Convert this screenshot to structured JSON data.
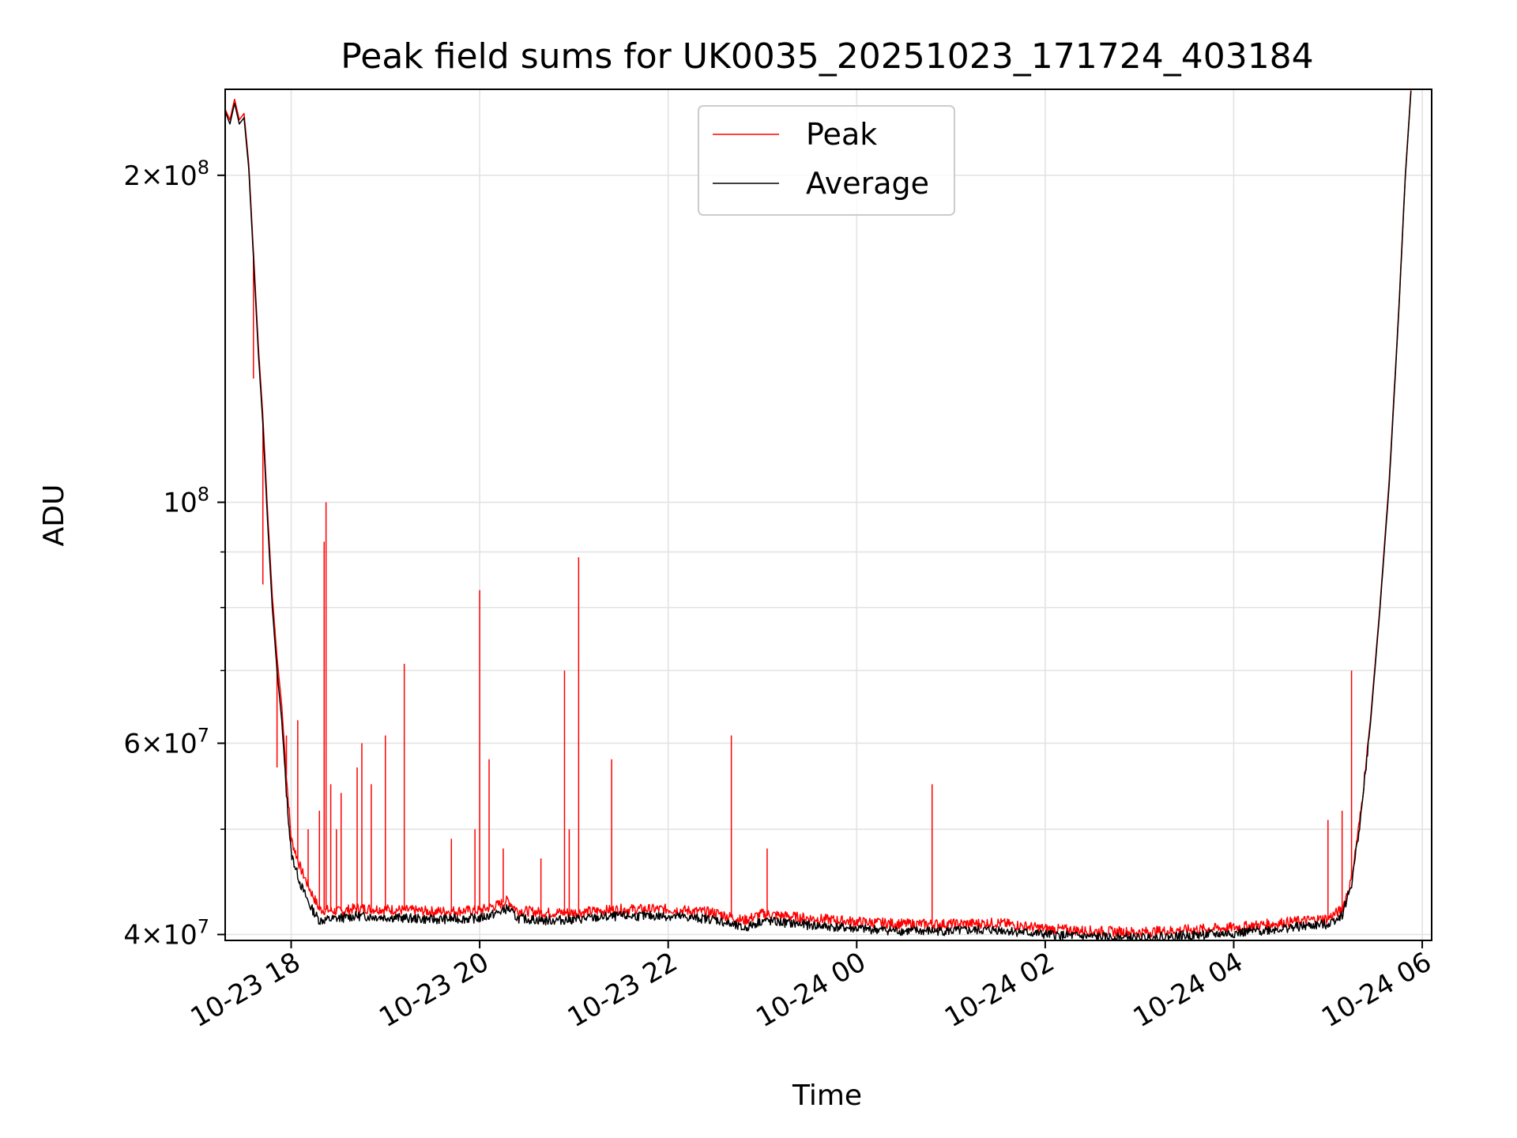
{
  "chart_data": {
    "type": "line",
    "title": "Peak field sums for UK0035_20251023_171724_403184",
    "xlabel": "Time",
    "ylabel": "ADU",
    "yscale": "log",
    "ylim": [
      39500000,
      240000000
    ],
    "xlim_hours": [
      17.3,
      30.1
    ],
    "grid": true,
    "legend_position": "top-center",
    "x_ticks": [
      {
        "hour": 18,
        "label": "10-23 18"
      },
      {
        "hour": 20,
        "label": "10-23 20"
      },
      {
        "hour": 22,
        "label": "10-23 22"
      },
      {
        "hour": 24,
        "label": "10-24 00"
      },
      {
        "hour": 26,
        "label": "10-24 02"
      },
      {
        "hour": 28,
        "label": "10-24 04"
      },
      {
        "hour": 30,
        "label": "10-24 06"
      }
    ],
    "y_ticks": [
      {
        "value": 40000000,
        "base": "4",
        "exp": "7",
        "mult": true
      },
      {
        "value": 60000000,
        "base": "6",
        "exp": "7",
        "mult": true
      },
      {
        "value": 100000000,
        "base": "10",
        "exp": "8",
        "mult": false
      },
      {
        "value": 200000000,
        "base": "2",
        "exp": "8",
        "mult": true
      }
    ],
    "y_minor_ticks": [
      50000000,
      70000000,
      80000000,
      90000000
    ],
    "series": [
      {
        "name": "Peak",
        "color": "#ff0000",
        "baseline_points": [
          [
            17.3,
            230000000
          ],
          [
            17.35,
            225000000
          ],
          [
            17.4,
            235000000
          ],
          [
            17.45,
            225000000
          ],
          [
            17.5,
            228000000
          ],
          [
            17.55,
            205000000
          ],
          [
            17.6,
            170000000
          ],
          [
            17.65,
            140000000
          ],
          [
            17.7,
            120000000
          ],
          [
            17.75,
            98000000
          ],
          [
            17.8,
            82000000
          ],
          [
            17.85,
            72000000
          ],
          [
            17.9,
            65000000
          ],
          [
            17.95,
            56000000
          ],
          [
            18.0,
            49000000
          ],
          [
            18.1,
            46000000
          ],
          [
            18.2,
            44000000
          ],
          [
            18.3,
            42200000
          ],
          [
            18.5,
            42000000
          ],
          [
            18.7,
            42300000
          ],
          [
            19.0,
            42200000
          ],
          [
            19.5,
            42000000
          ],
          [
            20.0,
            42100000
          ],
          [
            20.2,
            42600000
          ],
          [
            20.3,
            43000000
          ],
          [
            20.4,
            42100000
          ],
          [
            20.7,
            41900000
          ],
          [
            21.0,
            41900000
          ],
          [
            21.5,
            42200000
          ],
          [
            22.0,
            42200000
          ],
          [
            22.5,
            41900000
          ],
          [
            22.8,
            41200000
          ],
          [
            23.0,
            41800000
          ],
          [
            23.5,
            41400000
          ],
          [
            24.0,
            41100000
          ],
          [
            24.5,
            40900000
          ],
          [
            25.0,
            40900000
          ],
          [
            25.5,
            41000000
          ],
          [
            26.0,
            40500000
          ],
          [
            26.5,
            40300000
          ],
          [
            27.0,
            40200000
          ],
          [
            27.5,
            40400000
          ],
          [
            28.0,
            40600000
          ],
          [
            28.5,
            41000000
          ],
          [
            29.0,
            41400000
          ],
          [
            29.15,
            42200000
          ],
          [
            29.25,
            45000000
          ],
          [
            29.35,
            52000000
          ],
          [
            29.45,
            63000000
          ],
          [
            29.55,
            80000000
          ],
          [
            29.65,
            105000000
          ],
          [
            29.75,
            150000000
          ],
          [
            29.82,
            200000000
          ],
          [
            29.88,
            240000000
          ]
        ],
        "spikes": [
          [
            17.6,
            130000000
          ],
          [
            17.7,
            84000000
          ],
          [
            17.85,
            57000000
          ],
          [
            17.95,
            61000000
          ],
          [
            18.07,
            63000000
          ],
          [
            18.18,
            50000000
          ],
          [
            18.3,
            52000000
          ],
          [
            18.35,
            92000000
          ],
          [
            18.37,
            100000000
          ],
          [
            18.42,
            55000000
          ],
          [
            18.48,
            50000000
          ],
          [
            18.53,
            54000000
          ],
          [
            18.7,
            57000000
          ],
          [
            18.75,
            60000000
          ],
          [
            18.85,
            55000000
          ],
          [
            19.0,
            61000000
          ],
          [
            19.2,
            71000000
          ],
          [
            19.7,
            49000000
          ],
          [
            19.95,
            50000000
          ],
          [
            20.0,
            83000000
          ],
          [
            20.1,
            58000000
          ],
          [
            20.25,
            48000000
          ],
          [
            20.65,
            47000000
          ],
          [
            20.9,
            70000000
          ],
          [
            20.95,
            50000000
          ],
          [
            21.05,
            89000000
          ],
          [
            21.4,
            58000000
          ],
          [
            22.67,
            61000000
          ],
          [
            23.05,
            48000000
          ],
          [
            24.8,
            55000000
          ],
          [
            29.0,
            51000000
          ],
          [
            29.15,
            52000000
          ],
          [
            29.25,
            70000000
          ]
        ]
      },
      {
        "name": "Average",
        "color": "#000000",
        "baseline_points": [
          [
            17.3,
            229000000
          ],
          [
            17.35,
            223000000
          ],
          [
            17.4,
            233000000
          ],
          [
            17.45,
            223000000
          ],
          [
            17.5,
            226000000
          ],
          [
            17.55,
            203000000
          ],
          [
            17.6,
            168000000
          ],
          [
            17.65,
            138000000
          ],
          [
            17.7,
            118000000
          ],
          [
            17.75,
            96000000
          ],
          [
            17.8,
            80000000
          ],
          [
            17.85,
            70000000
          ],
          [
            17.9,
            63000000
          ],
          [
            17.95,
            54000000
          ],
          [
            18.0,
            47500000
          ],
          [
            18.1,
            44500000
          ],
          [
            18.2,
            42500000
          ],
          [
            18.3,
            41200000
          ],
          [
            18.5,
            41400000
          ],
          [
            18.7,
            41600000
          ],
          [
            19.0,
            41500000
          ],
          [
            19.5,
            41300000
          ],
          [
            20.0,
            41400000
          ],
          [
            20.2,
            41900000
          ],
          [
            20.3,
            42300000
          ],
          [
            20.4,
            41400000
          ],
          [
            20.7,
            41200000
          ],
          [
            21.0,
            41300000
          ],
          [
            21.5,
            41600000
          ],
          [
            22.0,
            41600000
          ],
          [
            22.5,
            41300000
          ],
          [
            22.8,
            40500000
          ],
          [
            23.0,
            41200000
          ],
          [
            23.5,
            40800000
          ],
          [
            24.0,
            40500000
          ],
          [
            24.5,
            40300000
          ],
          [
            25.0,
            40300000
          ],
          [
            25.5,
            40400000
          ],
          [
            26.0,
            40000000
          ],
          [
            26.5,
            39800000
          ],
          [
            27.0,
            39700000
          ],
          [
            27.5,
            39900000
          ],
          [
            28.0,
            40100000
          ],
          [
            28.5,
            40500000
          ],
          [
            29.0,
            40900000
          ],
          [
            29.15,
            41700000
          ],
          [
            29.25,
            44500000
          ],
          [
            29.35,
            51500000
          ],
          [
            29.45,
            62500000
          ],
          [
            29.55,
            79500000
          ],
          [
            29.65,
            104000000
          ],
          [
            29.75,
            149000000
          ],
          [
            29.82,
            199000000
          ],
          [
            29.88,
            239000000
          ]
        ]
      }
    ]
  }
}
